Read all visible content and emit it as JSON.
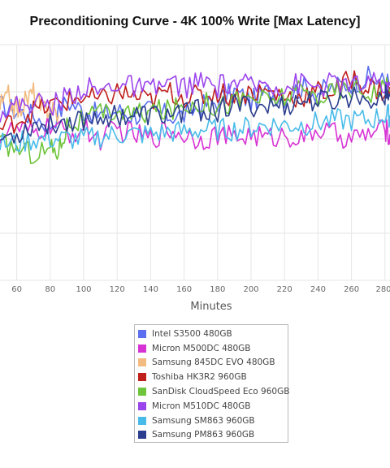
{
  "chart_data": {
    "type": "line",
    "title": "Preconditioning Curve - 4K 100% Write [Max Latency]",
    "xlabel": "Minutes",
    "ylabel": "",
    "xlim": [
      50,
      283
    ],
    "ylim": [
      0,
      1
    ],
    "x_ticks": [
      60,
      80,
      100,
      120,
      140,
      160,
      180,
      200,
      220,
      240,
      260,
      280
    ],
    "grid": true,
    "legend_position": "bottom",
    "series": [
      {
        "name": "Intel S3500 480GB",
        "color": "#5b6ff0",
        "x": [
          50,
          60,
          70,
          80,
          90,
          100,
          110,
          120,
          130,
          140,
          150,
          160,
          170,
          180,
          190,
          200,
          210,
          220,
          230,
          240,
          250,
          260,
          270,
          280,
          283
        ],
        "y": [
          0.74,
          0.72,
          0.7,
          0.66,
          0.76,
          0.72,
          0.7,
          0.72,
          0.7,
          0.72,
          0.7,
          0.7,
          0.74,
          0.76,
          0.8,
          0.76,
          0.8,
          0.78,
          0.82,
          0.8,
          0.82,
          0.84,
          0.86,
          0.84,
          0.84
        ]
      },
      {
        "name": "Micron M500DC 480GB",
        "color": "#d733d4",
        "x": [
          50,
          60,
          70,
          80,
          90,
          100,
          110,
          120,
          130,
          140,
          150,
          160,
          170,
          180,
          190,
          200,
          210,
          220,
          230,
          240,
          250,
          260,
          270,
          280,
          283
        ],
        "y": [
          0.62,
          0.64,
          0.62,
          0.66,
          0.62,
          0.64,
          0.6,
          0.64,
          0.62,
          0.6,
          0.64,
          0.62,
          0.6,
          0.62,
          0.6,
          0.62,
          0.6,
          0.62,
          0.6,
          0.64,
          0.62,
          0.6,
          0.62,
          0.64,
          0.62
        ]
      },
      {
        "name": "Samsung 845DC EVO 480GB",
        "color": "#f2bb80",
        "x": [
          50,
          55,
          60,
          65,
          70,
          75,
          80,
          85
        ],
        "y": [
          0.74,
          0.78,
          0.72,
          0.76,
          0.8,
          0.72,
          0.74,
          0.7
        ]
      },
      {
        "name": "Toshiba HK3R2 960GB",
        "color": "#c0201c",
        "x": [
          50,
          60,
          70,
          80,
          90,
          100,
          110,
          120,
          130,
          140,
          150,
          160,
          170,
          180,
          190,
          200,
          210,
          220,
          230,
          240,
          250,
          260,
          270,
          280,
          283
        ],
        "y": [
          0.64,
          0.68,
          0.72,
          0.74,
          0.76,
          0.78,
          0.76,
          0.8,
          0.78,
          0.76,
          0.8,
          0.78,
          0.78,
          0.8,
          0.78,
          0.8,
          0.8,
          0.78,
          0.78,
          0.8,
          0.8,
          0.86,
          0.82,
          0.8,
          0.82
        ]
      },
      {
        "name": "SanDisk CloudSpeed Eco 960GB",
        "color": "#6ec43a",
        "x": [
          50,
          60,
          70,
          80,
          85,
          90,
          100,
          110,
          120,
          130,
          140,
          150,
          160,
          170,
          180,
          190,
          200,
          210,
          220,
          230,
          240,
          250,
          260,
          270,
          280,
          283
        ],
        "y": [
          0.58,
          0.56,
          0.54,
          0.56,
          0.55,
          0.66,
          0.68,
          0.7,
          0.72,
          0.7,
          0.72,
          0.72,
          0.74,
          0.76,
          0.74,
          0.76,
          0.78,
          0.76,
          0.78,
          0.8,
          0.78,
          0.8,
          0.82,
          0.8,
          0.82,
          0.8
        ]
      },
      {
        "name": "Micron M510DC 480GB",
        "color": "#9b45ec",
        "x": [
          50,
          60,
          70,
          80,
          90,
          100,
          110,
          120,
          130,
          140,
          150,
          160,
          170,
          180,
          190,
          200,
          210,
          220,
          230,
          240,
          250,
          260,
          270,
          280,
          283
        ],
        "y": [
          0.72,
          0.74,
          0.76,
          0.74,
          0.78,
          0.82,
          0.8,
          0.84,
          0.82,
          0.8,
          0.84,
          0.82,
          0.84,
          0.82,
          0.84,
          0.82,
          0.84,
          0.82,
          0.84,
          0.82,
          0.84,
          0.82,
          0.84,
          0.82,
          0.84
        ]
      },
      {
        "name": "Samsung SM863 960GB",
        "color": "#49bbe9",
        "x": [
          50,
          60,
          70,
          80,
          90,
          100,
          110,
          120,
          130,
          140,
          150,
          160,
          170,
          180,
          190,
          200,
          210,
          220,
          230,
          240,
          250,
          260,
          270,
          280,
          283
        ],
        "y": [
          0.58,
          0.58,
          0.6,
          0.6,
          0.6,
          0.6,
          0.61,
          0.62,
          0.62,
          0.62,
          0.63,
          0.63,
          0.64,
          0.64,
          0.64,
          0.65,
          0.66,
          0.66,
          0.66,
          0.67,
          0.68,
          0.68,
          0.68,
          0.7,
          0.7
        ]
      },
      {
        "name": "Samsung PM863 960GB",
        "color": "#2c3e8e",
        "x": [
          50,
          60,
          70,
          80,
          90,
          100,
          110,
          120,
          130,
          140,
          150,
          160,
          170,
          180,
          190,
          200,
          210,
          220,
          230,
          240,
          250,
          260,
          270,
          280,
          283
        ],
        "y": [
          0.6,
          0.62,
          0.66,
          0.66,
          0.68,
          0.68,
          0.7,
          0.7,
          0.7,
          0.7,
          0.7,
          0.72,
          0.72,
          0.72,
          0.74,
          0.74,
          0.74,
          0.74,
          0.76,
          0.76,
          0.76,
          0.78,
          0.78,
          0.78,
          0.78
        ]
      }
    ]
  }
}
